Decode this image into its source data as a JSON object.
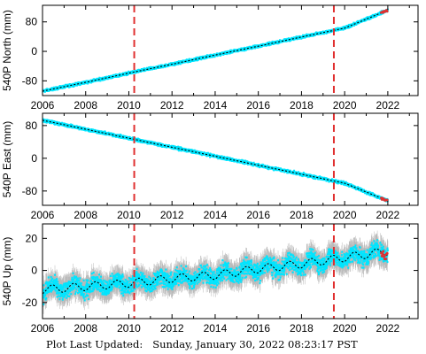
{
  "footer": {
    "label": "Plot Last Updated:",
    "timestamp": "Sunday, January 30, 2022 08:23:17 PST"
  },
  "colors": {
    "data": "#00e5ff",
    "error_bars": "#b8b8b8",
    "model": "#000000",
    "events": "#e03030",
    "recent": "#e03030"
  },
  "chart_data": [
    {
      "type": "line",
      "ylabel": "540P North (mm)",
      "xlim": [
        2006,
        2023.4
      ],
      "ylim": [
        -120,
        125
      ],
      "x_ticks": [
        2006,
        2008,
        2010,
        2012,
        2014,
        2016,
        2018,
        2020,
        2022
      ],
      "y_ticks": [
        -80,
        0,
        80
      ],
      "events": [
        2010.25,
        2019.5
      ],
      "series": [
        {
          "x": [
            2006,
            2008,
            2010,
            2012,
            2014,
            2016,
            2018,
            2020,
            2022
          ],
          "y": [
            -108,
            -84,
            -59,
            -35,
            -10,
            14,
            39,
            63,
            112
          ]
        }
      ],
      "noise_mm": 3
    },
    {
      "type": "line",
      "ylabel": "540P East (mm)",
      "xlim": [
        2006,
        2023.4
      ],
      "ylim": [
        -115,
        110
      ],
      "x_ticks": [
        2006,
        2008,
        2010,
        2012,
        2014,
        2016,
        2018,
        2020,
        2022
      ],
      "y_ticks": [
        -80,
        0,
        80
      ],
      "events": [
        2010.25,
        2019.5
      ],
      "series": [
        {
          "x": [
            2006,
            2008,
            2010,
            2012,
            2014,
            2016,
            2018,
            2020,
            2022
          ],
          "y": [
            93,
            71,
            49,
            27,
            5,
            -17,
            -39,
            -61,
            -104
          ]
        }
      ],
      "noise_mm": 3
    },
    {
      "type": "line",
      "ylabel": "540P Up (mm)",
      "xlim": [
        2006,
        2023.4
      ],
      "ylim": [
        -30,
        29
      ],
      "x_ticks": [
        2006,
        2008,
        2010,
        2012,
        2014,
        2016,
        2018,
        2020,
        2022
      ],
      "y_ticks": [
        -20,
        0,
        20
      ],
      "events": [
        2010.25,
        2019.5
      ],
      "series": [
        {
          "x": [
            2006,
            2008,
            2010,
            2012,
            2014,
            2016,
            2018,
            2020,
            2022
          ],
          "y": [
            -12,
            -10,
            -8,
            -5,
            -3,
            1,
            4,
            8,
            12
          ]
        }
      ],
      "seasonal_amplitude_mm": 2.5,
      "noise_mm": 4.5
    }
  ]
}
